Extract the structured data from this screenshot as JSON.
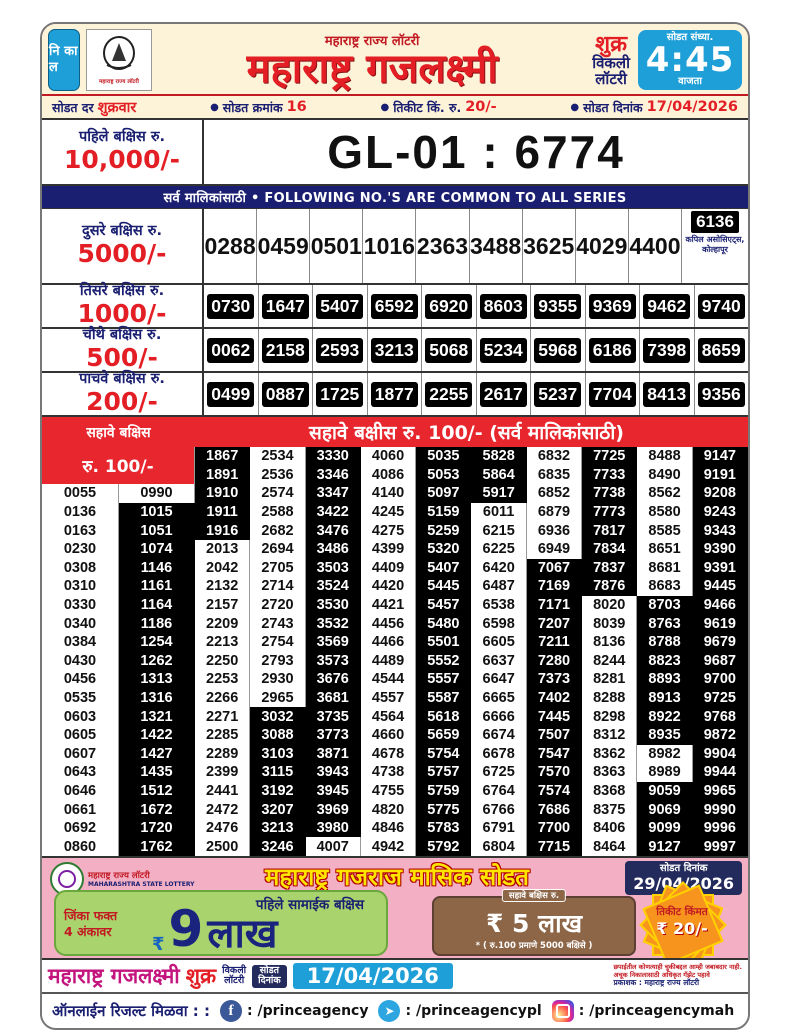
{
  "header": {
    "nikal": "नि का ल",
    "logo_caption": "महाराष्ट्र राज्य लॉटरी",
    "small_title": "महाराष्ट्र राज्य लॉटरी",
    "main_title": "महाराष्ट्र गजलक्ष्मी",
    "day": "शुक्र",
    "weekly_line1": "विकली",
    "weekly_line2": "लॉटरी",
    "time_label": "सोडत संध्या.",
    "time": "4:45",
    "time_suffix": "वाजता"
  },
  "info_row": {
    "segments": [
      {
        "label": "सोडत दर",
        "value": "शुक्रवार"
      },
      {
        "label": "सोडत क्रमांक",
        "value": "16"
      },
      {
        "label": "तिकीट किं. रु.",
        "value": "20/-"
      },
      {
        "label": "सोडत दिनांक",
        "value": "17/04/2026"
      }
    ]
  },
  "first_prize": {
    "label": "पहिले बक्षिस रु.",
    "amount": "10,000/-",
    "number": "GL-01 : 6774"
  },
  "series_note": "सर्व मालिकांसाठी  •  FOLLOWING NO.'S ARE COMMON TO ALL SERIES",
  "prizes": [
    {
      "label": "दुसरे बक्षिस रु.",
      "amount": "5000/-",
      "numbers": [
        "0288",
        "0459",
        "0501",
        "1016",
        "2363",
        "3488",
        "3625",
        "4029",
        "4400"
      ],
      "agent_number": "6136",
      "agent": "कपिल असोसिएट्स, कोल्हापूर"
    },
    {
      "label": "तिसरे बक्षिस रु.",
      "amount": "1000/-",
      "numbers": [
        "0730",
        "1647",
        "5407",
        "6592",
        "6920",
        "8603",
        "9355",
        "9369",
        "9462",
        "9740"
      ]
    },
    {
      "label": "चौथे बक्षिस रु.",
      "amount": "500/-",
      "numbers": [
        "0062",
        "2158",
        "2593",
        "3213",
        "5068",
        "5234",
        "5968",
        "6186",
        "7398",
        "8659"
      ]
    },
    {
      "label": "पाचवे बक्षिस रु.",
      "amount": "200/-",
      "numbers": [
        "0499",
        "0887",
        "1725",
        "1877",
        "2255",
        "2617",
        "5237",
        "7704",
        "8413",
        "9356"
      ]
    }
  ],
  "sixth_prize": {
    "label_line1": "सहावे बक्षिस",
    "label_line2": "रु. 100/-",
    "title": "सहावे बक्षीस रु. 100/-   (सर्व मालिकांसाठी)",
    "columns": [
      [
        "0055",
        "0136",
        "0163",
        "0230",
        "0308",
        "0310",
        "0330",
        "0340",
        "0384",
        "0430",
        "0456",
        "0535",
        "0603",
        "0605",
        "0607",
        "0643",
        "0646",
        "0661",
        "0692",
        "0860"
      ],
      [
        "0990",
        "1015",
        "1051",
        "1074",
        "1146",
        "1161",
        "1164",
        "1186",
        "1254",
        "1262",
        "1313",
        "1316",
        "1321",
        "1422",
        "1427",
        "1435",
        "1512",
        "1672",
        "1720",
        "1762"
      ],
      [
        "1867",
        "1891",
        "1910",
        "1911",
        "1916",
        "2013",
        "2042",
        "2132",
        "2157",
        "2209",
        "2213",
        "2250",
        "2253",
        "2266",
        "2271",
        "2285",
        "2289",
        "2399",
        "2441",
        "2472",
        "2476",
        "2500"
      ],
      [
        "2534",
        "2536",
        "2574",
        "2588",
        "2682",
        "2694",
        "2705",
        "2714",
        "2720",
        "2743",
        "2754",
        "2793",
        "2930",
        "2965",
        "3032",
        "3088",
        "3103",
        "3115",
        "3192",
        "3207",
        "3213",
        "3246"
      ],
      [
        "3330",
        "3346",
        "3347",
        "3422",
        "3476",
        "3486",
        "3503",
        "3524",
        "3530",
        "3532",
        "3569",
        "3573",
        "3676",
        "3681",
        "3735",
        "3773",
        "3871",
        "3943",
        "3945",
        "3969",
        "3980",
        "4007"
      ],
      [
        "4060",
        "4086",
        "4140",
        "4245",
        "4275",
        "4399",
        "4409",
        "4420",
        "4421",
        "4456",
        "4466",
        "4489",
        "4544",
        "4557",
        "4564",
        "4660",
        "4678",
        "4738",
        "4755",
        "4820",
        "4846",
        "4942"
      ],
      [
        "5035",
        "5053",
        "5097",
        "5159",
        "5259",
        "5320",
        "5407",
        "5445",
        "5457",
        "5480",
        "5501",
        "5552",
        "5557",
        "5587",
        "5618",
        "5659",
        "5754",
        "5757",
        "5759",
        "5775",
        "5783",
        "5792"
      ],
      [
        "5828",
        "5864",
        "5917",
        "6011",
        "6215",
        "6225",
        "6420",
        "6487",
        "6538",
        "6598",
        "6605",
        "6637",
        "6647",
        "6665",
        "6666",
        "6674",
        "6678",
        "6725",
        "6764",
        "6766",
        "6791",
        "6804"
      ],
      [
        "6832",
        "6835",
        "6852",
        "6879",
        "6936",
        "6949",
        "7067",
        "7169",
        "7171",
        "7207",
        "7211",
        "7280",
        "7373",
        "7402",
        "7445",
        "7507",
        "7547",
        "7570",
        "7574",
        "7686",
        "7700",
        "7715"
      ],
      [
        "7725",
        "7733",
        "7738",
        "7773",
        "7817",
        "7834",
        "7837",
        "7876",
        "8020",
        "8039",
        "8136",
        "8244",
        "8281",
        "8288",
        "8298",
        "8312",
        "8362",
        "8363",
        "8368",
        "8375",
        "8406",
        "8464"
      ],
      [
        "8488",
        "8490",
        "8562",
        "8580",
        "8585",
        "8651",
        "8681",
        "8683",
        "8703",
        "8763",
        "8788",
        "8823",
        "8893",
        "8913",
        "8922",
        "8935",
        "8982",
        "8989",
        "9059",
        "9069",
        "9099",
        "9127"
      ],
      [
        "9147",
        "9191",
        "9208",
        "9243",
        "9343",
        "9390",
        "9391",
        "9445",
        "9466",
        "9619",
        "9679",
        "9687",
        "9700",
        "9725",
        "9768",
        "9872",
        "9904",
        "9944",
        "9965",
        "9990",
        "9996",
        "9997"
      ]
    ]
  },
  "monthly_banner": {
    "org_hi": "महाराष्ट्र राज्य लॉटरी",
    "org_en": "MAHARASHTRA STATE LOTTERY",
    "title": "महाराष्ट्र गजराज मासिक सोडत",
    "date_label": "सोडत दिनांक",
    "date": "29/04/2026",
    "condition_line1": "जिंका फक्त",
    "condition_line2": "4 अंकावर",
    "first_label": "पहिले सामाईक बक्षिस",
    "rupee": "₹",
    "first_digit": "9",
    "first_unit": "लाख",
    "sixth_label": "सहावे बक्षिस रु.",
    "sixth_amount": "₹ 5 लाख",
    "sixth_note": "* ( रु.100 प्रमाणे 5000 बक्षिसे )",
    "ticket_label": "तिकीट किंमत",
    "ticket_price": "₹ 20/-"
  },
  "result_strip": {
    "title": "महाराष्ट्र गजलक्ष्मी",
    "day": "शुक्र",
    "weekly_line1": "विकली",
    "weekly_line2": "लॉटरी",
    "date_label_line1": "सोडत",
    "date_label_line2": "दिनांक",
    "date": "17/04/2026",
    "disclaimer1": "छपाईतील कोणत्याही चुकीबद्दल आम्ही जबाबदार नाही.",
    "disclaimer2": "अचूक निकालासाठी अधिकृत गॅझेट पहावे",
    "publisher": "प्रकाशक : महाराष्ट्र राज्य लॉटरी"
  },
  "footer": {
    "label": "ऑनलाईन रिजल्ट मिळवा : :",
    "facebook": ": /princeagency",
    "telegram": ": /princeagencypl",
    "instagram": ": /princeagencymah"
  },
  "colors": {
    "accent_red": "#e31e25",
    "navy": "#1a1f71",
    "sky_blue": "#1e9fd8",
    "band_red": "#e8262d",
    "pink": "#f3afc4"
  }
}
